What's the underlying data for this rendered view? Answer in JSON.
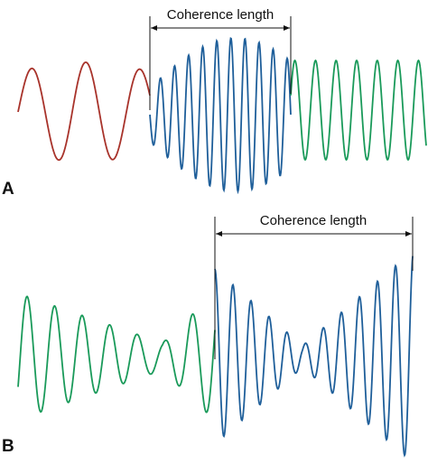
{
  "panels": [
    {
      "label": "A",
      "annotation": "Coherence length"
    },
    {
      "label": "B",
      "annotation": "Coherence length"
    }
  ]
}
